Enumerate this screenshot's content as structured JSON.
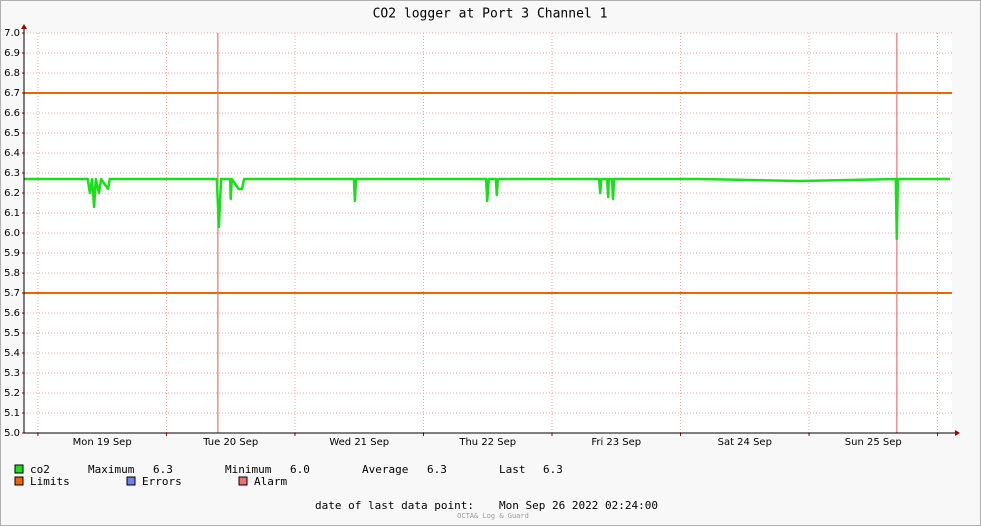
{
  "chart_data": {
    "type": "line",
    "title": "CO2 logger at Port 3 Channel 1",
    "x": [
      -2.6,
      0,
      4.1,
      9.3,
      9.7,
      10.1,
      10.5,
      10.8,
      11.4,
      11.8,
      13.1,
      13.4,
      20.9,
      28.4,
      33.4,
      33.8,
      34.2,
      35.9,
      36.0,
      36.2,
      37.5,
      38.1,
      38.5,
      48.9,
      59.0,
      59.2,
      59.4,
      71.3,
      83.7,
      83.9,
      84.2,
      85.5,
      85.7,
      85.9,
      97.5,
      104.8,
      105.0,
      105.2,
      106.3,
      106.5,
      106.6,
      107.2,
      107.4,
      107.6,
      123.6,
      142.3,
      160.2,
      160.4,
      160.6,
      170.3
    ],
    "series": [
      {
        "name": "co2",
        "color": "#18e018",
        "values": [
          6.27,
          6.27,
          6.27,
          6.27,
          6.2,
          6.27,
          6.13,
          6.27,
          6.2,
          6.27,
          6.22,
          6.27,
          6.27,
          6.27,
          6.27,
          6.03,
          6.27,
          6.27,
          6.17,
          6.27,
          6.22,
          6.22,
          6.27,
          6.27,
          6.27,
          6.16,
          6.27,
          6.27,
          6.27,
          6.16,
          6.27,
          6.27,
          6.19,
          6.27,
          6.27,
          6.27,
          6.2,
          6.27,
          6.27,
          6.18,
          6.27,
          6.27,
          6.17,
          6.27,
          6.27,
          6.26,
          6.27,
          5.97,
          6.27,
          6.27
        ]
      }
    ],
    "limits": {
      "name": "Limits",
      "color": "#f06400",
      "values": [
        6.7,
        5.7
      ]
    },
    "errors": {
      "name": "Errors",
      "color": "#7080f0"
    },
    "alarm": {
      "name": "Alarm",
      "color": "#f07070",
      "x": [
        33.6,
        160.4
      ]
    },
    "stats": [
      {
        "label": "Maximum",
        "value": "6.3"
      },
      {
        "label": "Minimum",
        "value": "6.0"
      },
      {
        "label": "Average",
        "value": "6.3"
      },
      {
        "label": "Last",
        "value": "6.3"
      }
    ],
    "xlim": [
      -2.6,
      170.7
    ],
    "xticks": [
      {
        "value": 12,
        "label": "Mon 19 Sep"
      },
      {
        "value": 36,
        "label": "Tue 20 Sep"
      },
      {
        "value": 60,
        "label": "Wed 21 Sep"
      },
      {
        "value": 84,
        "label": "Thu 22 Sep"
      },
      {
        "value": 108,
        "label": "Fri 23 Sep"
      },
      {
        "value": 132,
        "label": "Sat 24 Sep"
      },
      {
        "value": 156,
        "label": "Sun 25 Sep"
      }
    ],
    "xgrid": [
      0,
      24,
      48,
      72,
      96,
      120,
      144,
      168
    ],
    "ylim": [
      5.0,
      7.0
    ],
    "yticks": [
      {
        "value": 5,
        "label": "5.0"
      },
      5.1,
      5.2,
      5.3,
      5.4,
      5.5,
      5.6,
      5.7,
      5.8,
      5.9,
      {
        "value": 6,
        "label": "6.0"
      },
      6.1,
      6.2,
      6.3,
      6.4,
      6.5,
      6.6,
      6.7,
      6.8,
      6.9,
      {
        "value": 7,
        "label": "7.0"
      }
    ],
    "grid": true,
    "footer_label": "date of last data point:",
    "footer_value": "Mon Sep 26 2022 02:24:00",
    "watermark": "OCTA& Log & Guard"
  }
}
